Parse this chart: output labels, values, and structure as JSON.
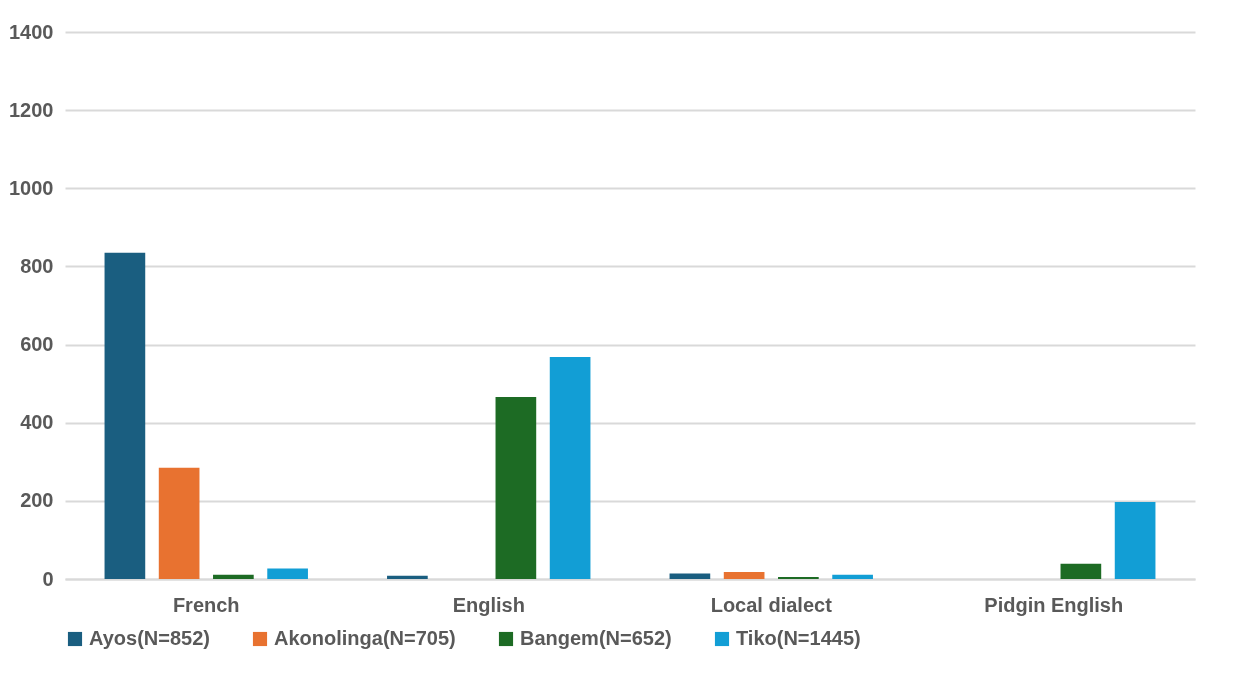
{
  "chart_data": {
    "type": "bar",
    "categories": [
      "French",
      "English",
      "Local dialect",
      "Pidgin English"
    ],
    "series": [
      {
        "name": "Ayos(N=852)",
        "color": "#1a5e80",
        "values": [
          835,
          8,
          14,
          0
        ]
      },
      {
        "name": "Akonolinga(N=705)",
        "color": "#e87230",
        "values": [
          285,
          0,
          18,
          0
        ]
      },
      {
        "name": "Bangem(N=652)",
        "color": "#1d6b24",
        "values": [
          11,
          466,
          5,
          39
        ]
      },
      {
        "name": "Tiko(N=1445)",
        "color": "#129ed5",
        "values": [
          27,
          568,
          11,
          197
        ]
      }
    ],
    "ylim": [
      0,
      1400
    ],
    "yticks": [
      0,
      200,
      400,
      600,
      800,
      1000,
      1200,
      1400
    ],
    "grid": "y",
    "legend": "bottom"
  }
}
